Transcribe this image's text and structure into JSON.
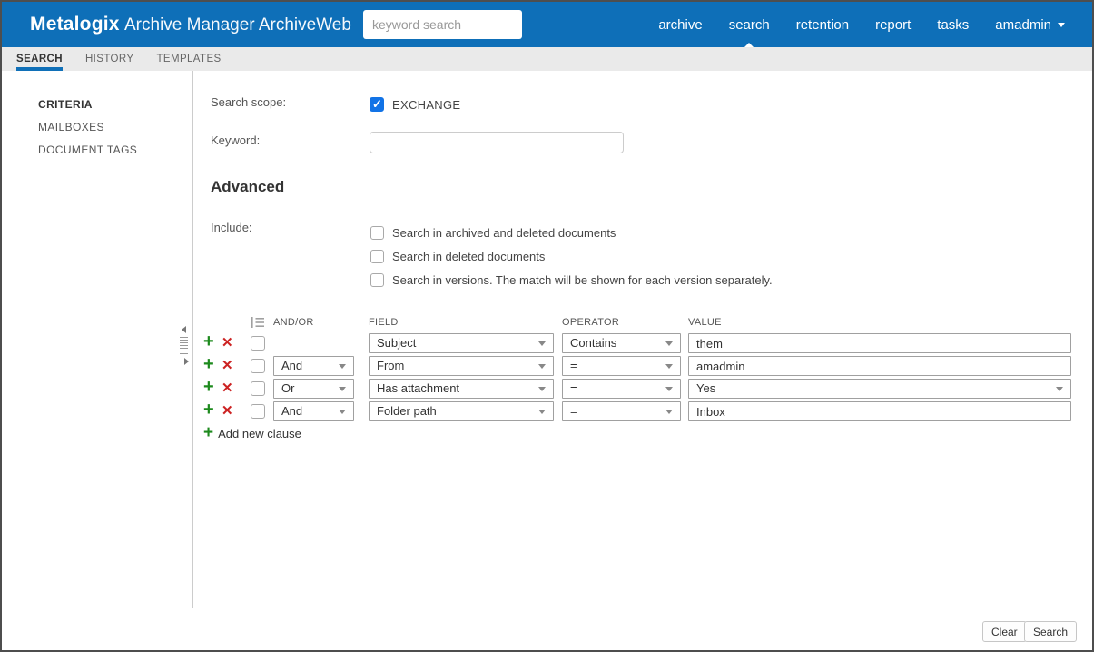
{
  "colors": {
    "header_blue": "#0e6fb8",
    "accent_blue": "#1070b8",
    "checkbox_blue": "#1273e6",
    "add_green": "#1d8a1d",
    "delete_red": "#cc2222"
  },
  "header": {
    "brand": "Metalogix",
    "product": "Archive Manager ArchiveWeb",
    "search_placeholder": "keyword search",
    "nav": [
      {
        "label": "archive",
        "active": false,
        "dropdown": false
      },
      {
        "label": "search",
        "active": true,
        "dropdown": false
      },
      {
        "label": "retention",
        "active": false,
        "dropdown": false
      },
      {
        "label": "report",
        "active": false,
        "dropdown": false
      },
      {
        "label": "tasks",
        "active": false,
        "dropdown": false
      },
      {
        "label": "amadmin",
        "active": false,
        "dropdown": true
      }
    ]
  },
  "tabs": [
    {
      "label": "SEARCH",
      "active": true
    },
    {
      "label": "HISTORY",
      "active": false
    },
    {
      "label": "TEMPLATES",
      "active": false
    }
  ],
  "sidebar": {
    "items": [
      {
        "label": "CRITERIA",
        "active": true
      },
      {
        "label": "MAILBOXES",
        "active": false
      },
      {
        "label": "DOCUMENT TAGS",
        "active": false
      }
    ]
  },
  "main": {
    "search_scope_label": "Search scope:",
    "scopes": [
      {
        "label": "EXCHANGE",
        "checked": true
      }
    ],
    "keyword_label": "Keyword:",
    "keyword_value": "",
    "advanced_heading": "Advanced",
    "include_label": "Include:",
    "include_options": [
      {
        "label": "Search in archived and deleted documents",
        "checked": false
      },
      {
        "label": "Search in deleted documents",
        "checked": false
      },
      {
        "label": "Search in versions. The match will be shown for each version separately.",
        "checked": false
      }
    ],
    "clause_table": {
      "headers": {
        "andor": "AND/OR",
        "field": "FIELD",
        "operator": "OPERATOR",
        "value": "VALUE"
      },
      "rows": [
        {
          "andor": null,
          "field": "Subject",
          "operator": "Contains",
          "value": "them",
          "value_type": "text",
          "checked": false
        },
        {
          "andor": "And",
          "field": "From",
          "operator": "=",
          "value": "amadmin",
          "value_type": "text",
          "checked": false
        },
        {
          "andor": "Or",
          "field": "Has attachment",
          "operator": "=",
          "value": "Yes",
          "value_type": "select",
          "checked": false
        },
        {
          "andor": "And",
          "field": "Folder path",
          "operator": "=",
          "value": "Inbox",
          "value_type": "text",
          "checked": false
        }
      ],
      "add_new_clause": "Add new clause"
    }
  },
  "footer": {
    "clear_label": "Clear",
    "search_label": "Search"
  }
}
